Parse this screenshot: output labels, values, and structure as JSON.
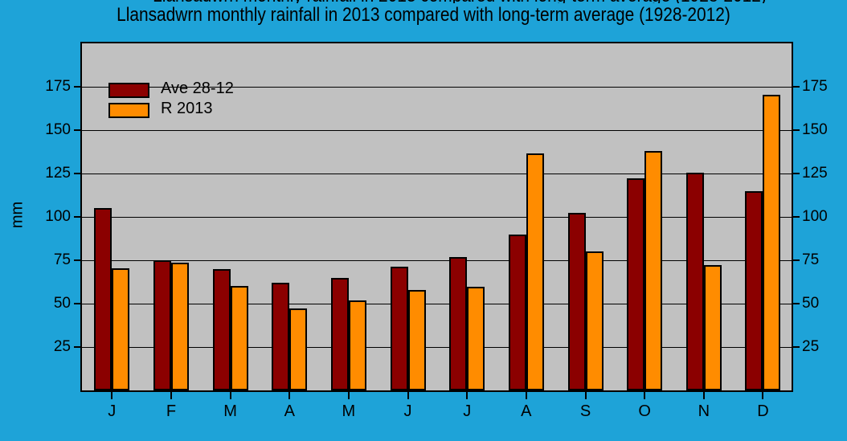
{
  "page": {
    "background_color": "#1EA3D8",
    "clipped_top_text": "Llansadwrn monthly rainfall in 2013 compared with long-term average (1928-2012)"
  },
  "title": "Llansadwrn monthly rainfall in 2013 compared with long-term average (1928-2012)",
  "ylabel": "mm",
  "chart_data": {
    "type": "bar",
    "title": "Llansadwrn monthly rainfall in 2013 compared with long-term average (1928-2012)",
    "xlabel": "",
    "ylabel": "mm",
    "categories": [
      "J",
      "F",
      "M",
      "A",
      "M",
      "J",
      "J",
      "A",
      "S",
      "O",
      "N",
      "D"
    ],
    "series": [
      {
        "name": "Ave 28-12",
        "color": "#8B0000",
        "values": [
          105,
          75,
          70,
          62,
          65,
          71.5,
          77,
          90,
          102.5,
          122,
          125.5,
          115
        ]
      },
      {
        "name": "R 2013",
        "color": "#FF8C00",
        "values": [
          70.5,
          73.5,
          60,
          47,
          52,
          58,
          59.5,
          136.5,
          80,
          138,
          72,
          170.5
        ]
      }
    ],
    "yticks": [
      25,
      50,
      75,
      100,
      125,
      150,
      175
    ],
    "ytick_labels_both_sides": true,
    "ylim": [
      0,
      200
    ],
    "grid": true,
    "legend_position": "top-left",
    "plot_background": "#C1C1C1",
    "page_background": "#1EA3D8"
  }
}
